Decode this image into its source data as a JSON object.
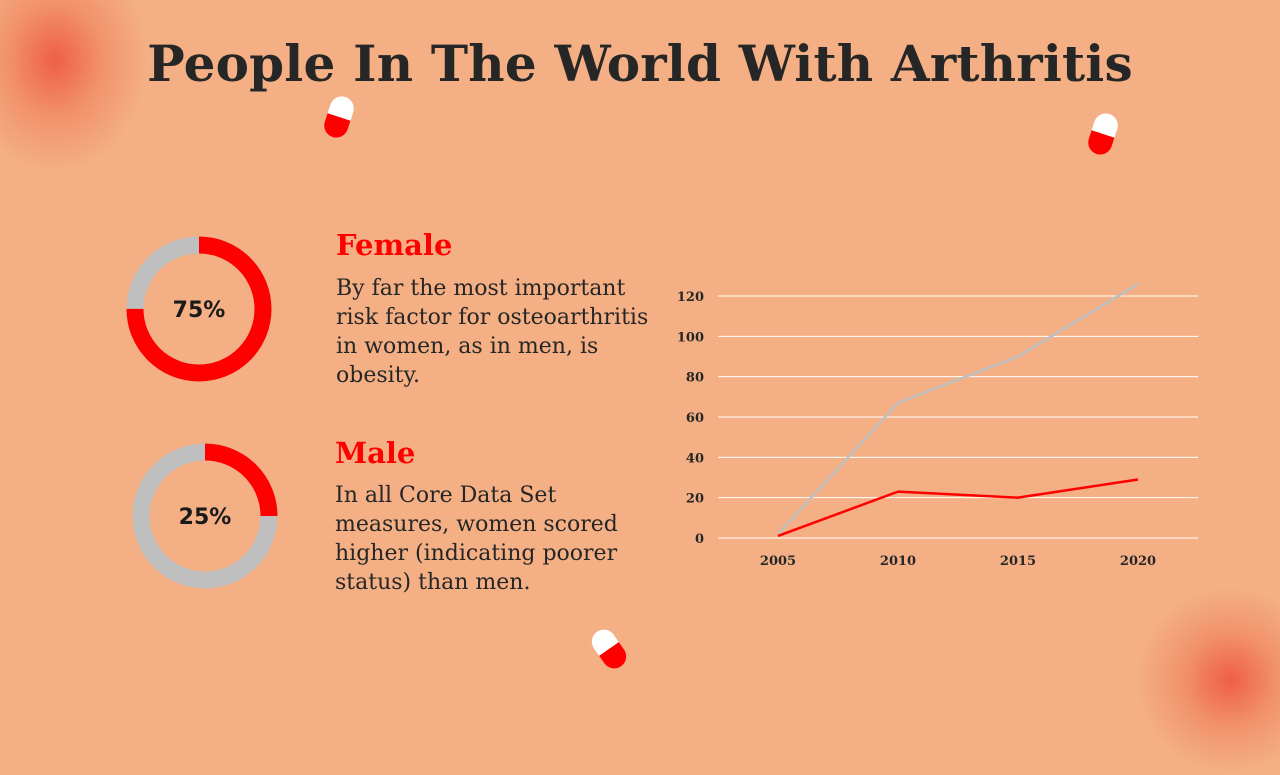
{
  "slide": {
    "title": "People In The World With Arthritis"
  },
  "stats": [
    {
      "heading": "Female",
      "percent": 75,
      "percent_label": "75%",
      "description": "By far the most important risk factor for osteoarthritis in women, as in men, is obesity."
    },
    {
      "heading": "Male",
      "percent": 25,
      "percent_label": "25%",
      "description": "In all Core Data Set measures, women scored higher (indicating poorer status) than men."
    }
  ],
  "colors": {
    "background": "#F4B084",
    "accent": "#FF0000",
    "muted": "#BFBFBF",
    "text": "#262626"
  },
  "chart_data": {
    "type": "line",
    "x": [
      "2005",
      "2010",
      "2015",
      "2020"
    ],
    "series": [
      {
        "color": "#BFBFBF",
        "values": [
          2,
          67,
          90,
          126
        ]
      },
      {
        "color": "#FF0000",
        "values": [
          1,
          23,
          20,
          29
        ]
      }
    ],
    "yticks": [
      0,
      20,
      40,
      60,
      80,
      100,
      120
    ],
    "ylim": [
      0,
      120
    ],
    "grid": true,
    "legend": "none"
  }
}
